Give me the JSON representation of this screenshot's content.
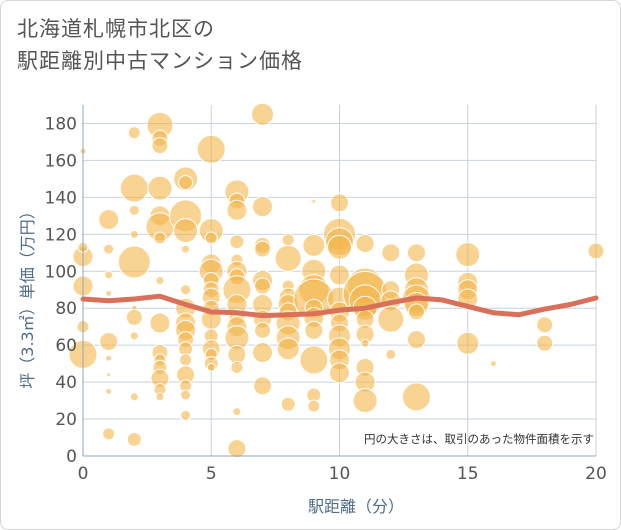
{
  "title_line1": "北海道札幌市北区の",
  "title_line2": "駅距離別中古マンション価格",
  "chart_data": {
    "type": "scatter",
    "xlabel": "駅距離（分）",
    "ylabel": "坪（3.3㎡）単価（万円）",
    "xlim": [
      0,
      20
    ],
    "ylim": [
      0,
      190
    ],
    "xticks": [
      0,
      5,
      10,
      15,
      20
    ],
    "yticks": [
      0,
      20,
      40,
      60,
      80,
      100,
      120,
      140,
      160,
      180
    ],
    "grid": true,
    "annotation": "円の大きさは、取引のあった物件面積を示す",
    "colors": {
      "bubble": "#f3b54a",
      "trend": "#d9705a",
      "grid": "#c8d3dd",
      "axis": "#8fa5bb"
    },
    "bubbles": [
      [
        0,
        55,
        14
      ],
      [
        0,
        70,
        6
      ],
      [
        0,
        92,
        10
      ],
      [
        0,
        108,
        10
      ],
      [
        0,
        113,
        5
      ],
      [
        0,
        165,
        3
      ],
      [
        1,
        128,
        10
      ],
      [
        1,
        112,
        5
      ],
      [
        1,
        98,
        4
      ],
      [
        1,
        88,
        3
      ],
      [
        1,
        62,
        9
      ],
      [
        1,
        53,
        3
      ],
      [
        1,
        44,
        2
      ],
      [
        1,
        35,
        3
      ],
      [
        1,
        12,
        6
      ],
      [
        2,
        175,
        6
      ],
      [
        2,
        145,
        14
      ],
      [
        2,
        133,
        5
      ],
      [
        2,
        120,
        4
      ],
      [
        2,
        105,
        16
      ],
      [
        2,
        80,
        3
      ],
      [
        2,
        75,
        8
      ],
      [
        2,
        65,
        4
      ],
      [
        2,
        32,
        4
      ],
      [
        2,
        9,
        7
      ],
      [
        3,
        179,
        13
      ],
      [
        3,
        172,
        8
      ],
      [
        3,
        168,
        8
      ],
      [
        3,
        145,
        12
      ],
      [
        3,
        130,
        10
      ],
      [
        3,
        124,
        14
      ],
      [
        3,
        118,
        6
      ],
      [
        3,
        95,
        4
      ],
      [
        3,
        72,
        10
      ],
      [
        3,
        56,
        8
      ],
      [
        3,
        52,
        6
      ],
      [
        3,
        48,
        7
      ],
      [
        3,
        42,
        9
      ],
      [
        3,
        36,
        6
      ],
      [
        3,
        32,
        4
      ],
      [
        4,
        150,
        12
      ],
      [
        4,
        148,
        7
      ],
      [
        4,
        130,
        16
      ],
      [
        4,
        122,
        12
      ],
      [
        4,
        112,
        4
      ],
      [
        4,
        90,
        5
      ],
      [
        4,
        80,
        10
      ],
      [
        4,
        72,
        10
      ],
      [
        4,
        68,
        10
      ],
      [
        4,
        63,
        8
      ],
      [
        4,
        58,
        7
      ],
      [
        4,
        52,
        6
      ],
      [
        4,
        44,
        9
      ],
      [
        4,
        38,
        6
      ],
      [
        4,
        33,
        5
      ],
      [
        4,
        22,
        5
      ],
      [
        5,
        166,
        14
      ],
      [
        5,
        122,
        12
      ],
      [
        5,
        118,
        6
      ],
      [
        5,
        104,
        10
      ],
      [
        5,
        100,
        12
      ],
      [
        5,
        95,
        8
      ],
      [
        5,
        90,
        8
      ],
      [
        5,
        86,
        9
      ],
      [
        5,
        80,
        8
      ],
      [
        5,
        74,
        10
      ],
      [
        5,
        65,
        7
      ],
      [
        5,
        58,
        9
      ],
      [
        5,
        55,
        6
      ],
      [
        5,
        50,
        7
      ],
      [
        5,
        48,
        4
      ],
      [
        6,
        143,
        12
      ],
      [
        6,
        138,
        8
      ],
      [
        6,
        133,
        10
      ],
      [
        6,
        116,
        7
      ],
      [
        6,
        106,
        6
      ],
      [
        6,
        100,
        10
      ],
      [
        6,
        97,
        8
      ],
      [
        6,
        90,
        14
      ],
      [
        6,
        82,
        10
      ],
      [
        6,
        75,
        8
      ],
      [
        6,
        70,
        10
      ],
      [
        6,
        64,
        12
      ],
      [
        6,
        55,
        9
      ],
      [
        6,
        48,
        6
      ],
      [
        6,
        24,
        4
      ],
      [
        6,
        4,
        9
      ],
      [
        7,
        185,
        11
      ],
      [
        7,
        135,
        10
      ],
      [
        7,
        114,
        8
      ],
      [
        7,
        112,
        8
      ],
      [
        7,
        95,
        10
      ],
      [
        7,
        92,
        8
      ],
      [
        7,
        82,
        10
      ],
      [
        7,
        74,
        9
      ],
      [
        7,
        68,
        8
      ],
      [
        7,
        56,
        10
      ],
      [
        7,
        38,
        9
      ],
      [
        8,
        117,
        6
      ],
      [
        8,
        107,
        13
      ],
      [
        8,
        92,
        6
      ],
      [
        8,
        86,
        9
      ],
      [
        8,
        82,
        10
      ],
      [
        8,
        78,
        9
      ],
      [
        8,
        72,
        12
      ],
      [
        8,
        64,
        12
      ],
      [
        8,
        58,
        11
      ],
      [
        8,
        28,
        7
      ],
      [
        9,
        138,
        2
      ],
      [
        9,
        114,
        11
      ],
      [
        9,
        100,
        12
      ],
      [
        9,
        90,
        15
      ],
      [
        9,
        85,
        20
      ],
      [
        9,
        80,
        9
      ],
      [
        9,
        75,
        10
      ],
      [
        9,
        68,
        9
      ],
      [
        9,
        52,
        14
      ],
      [
        9,
        33,
        7
      ],
      [
        9,
        27,
        6
      ],
      [
        10,
        137,
        9
      ],
      [
        10,
        120,
        16
      ],
      [
        10,
        116,
        14
      ],
      [
        10,
        113,
        12
      ],
      [
        10,
        98,
        10
      ],
      [
        10,
        85,
        12
      ],
      [
        10,
        78,
        10
      ],
      [
        10,
        72,
        9
      ],
      [
        10,
        65,
        11
      ],
      [
        10,
        58,
        11
      ],
      [
        10,
        52,
        10
      ],
      [
        10,
        45,
        10
      ],
      [
        11,
        115,
        9
      ],
      [
        11,
        92,
        18
      ],
      [
        11,
        88,
        22
      ],
      [
        11,
        84,
        16
      ],
      [
        11,
        80,
        12
      ],
      [
        11,
        74,
        9
      ],
      [
        11,
        66,
        9
      ],
      [
        11,
        61,
        4
      ],
      [
        11,
        48,
        9
      ],
      [
        11,
        40,
        10
      ],
      [
        11,
        30,
        12
      ],
      [
        12,
        110,
        9
      ],
      [
        12,
        90,
        9
      ],
      [
        12,
        84,
        10
      ],
      [
        12,
        74,
        13
      ],
      [
        12,
        55,
        5
      ],
      [
        13,
        110,
        9
      ],
      [
        13,
        98,
        12
      ],
      [
        13,
        90,
        12
      ],
      [
        13,
        85,
        14
      ],
      [
        13,
        82,
        12
      ],
      [
        13,
        78,
        8
      ],
      [
        13,
        63,
        9
      ],
      [
        13,
        32,
        14
      ],
      [
        15,
        109,
        12
      ],
      [
        15,
        94,
        10
      ],
      [
        15,
        90,
        10
      ],
      [
        15,
        85,
        10
      ],
      [
        15,
        61,
        11
      ],
      [
        16,
        50,
        3
      ],
      [
        18,
        71,
        8
      ],
      [
        18,
        61,
        8
      ],
      [
        20,
        111,
        8
      ]
    ],
    "trend": [
      [
        0,
        85
      ],
      [
        1,
        84
      ],
      [
        2,
        85
      ],
      [
        3,
        86.5
      ],
      [
        4,
        82
      ],
      [
        5,
        78
      ],
      [
        6,
        77.5
      ],
      [
        7,
        76
      ],
      [
        8,
        76.5
      ],
      [
        9,
        77
      ],
      [
        10,
        79
      ],
      [
        11,
        80
      ],
      [
        12,
        83
      ],
      [
        13,
        85.5
      ],
      [
        14,
        84.5
      ],
      [
        15,
        81
      ],
      [
        16,
        77.5
      ],
      [
        17,
        76.5
      ],
      [
        18,
        79.5
      ],
      [
        19,
        82
      ],
      [
        20,
        85.5
      ]
    ]
  }
}
